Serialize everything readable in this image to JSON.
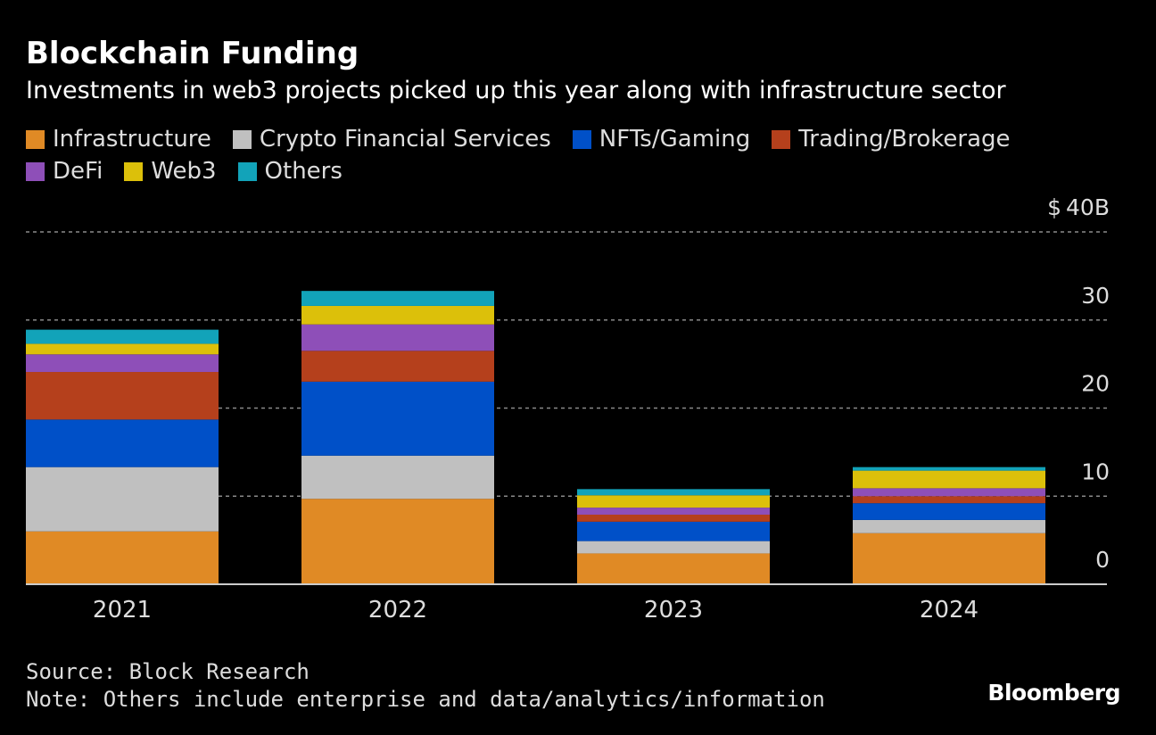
{
  "header": {
    "title": "Blockchain Funding",
    "subtitle": "Investments in web3 projects picked up this year along with infrastructure sector"
  },
  "colors": {
    "background": "#000000",
    "gridline": "#8a8a8a",
    "axis": "#cccccc"
  },
  "chart_data": {
    "type": "bar",
    "stacked": true,
    "title": "Blockchain Funding",
    "subtitle": "Investments in web3 projects picked up this year along with infrastructure sector",
    "categories": [
      "2021",
      "2022",
      "2023",
      "2024"
    ],
    "series": [
      {
        "name": "Infrastructure",
        "color": "#e08a25",
        "values": [
          6.0,
          9.7,
          3.5,
          5.8
        ]
      },
      {
        "name": "Crypto Financial Services",
        "color": "#c0c0c0",
        "values": [
          7.3,
          4.9,
          1.4,
          1.5
        ]
      },
      {
        "name": "NFTs/Gaming",
        "color": "#0050c8",
        "values": [
          5.4,
          8.4,
          2.2,
          1.9
        ]
      },
      {
        "name": "Trading/Brokerage",
        "color": "#b5401c",
        "values": [
          5.4,
          3.5,
          0.8,
          0.8
        ]
      },
      {
        "name": "DeFi",
        "color": "#8e4fb8",
        "values": [
          2.0,
          3.0,
          0.8,
          0.9
        ]
      },
      {
        "name": "Web3",
        "color": "#dcc00a",
        "values": [
          1.2,
          2.1,
          1.4,
          2.0
        ]
      },
      {
        "name": "Others",
        "color": "#12a3b9",
        "values": [
          1.6,
          1.7,
          0.7,
          0.4
        ]
      }
    ],
    "yaxis": {
      "ticks": [
        0,
        10,
        20,
        30,
        40
      ],
      "tick_labels": [
        "0",
        "10",
        "20",
        "30",
        "$ 40B"
      ],
      "ylim": [
        0,
        40
      ]
    },
    "xlabel": "",
    "ylabel": "",
    "grid": true,
    "legend_position": "top-left"
  },
  "footer": {
    "source": "Source: Block Research",
    "note": "Note: Others include enterprise and data/analytics/information",
    "brand": "Bloomberg"
  }
}
